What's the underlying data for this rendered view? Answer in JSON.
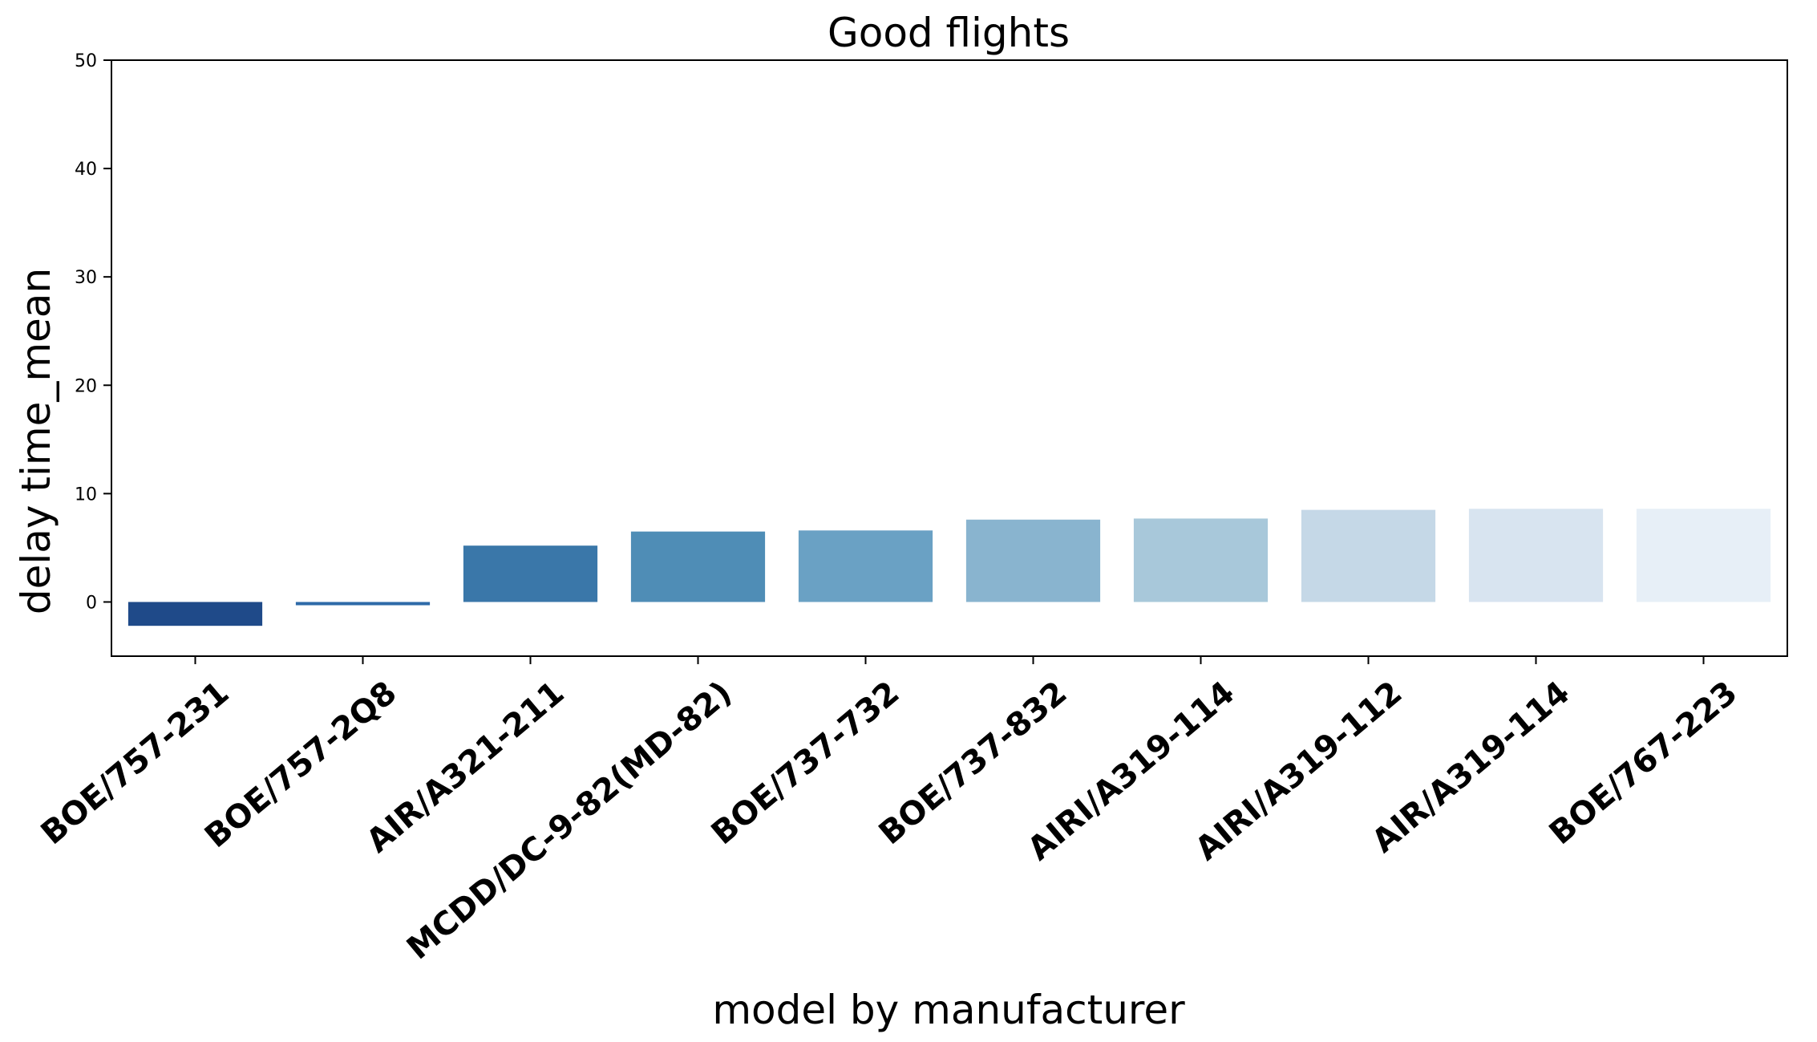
{
  "chart_data": {
    "type": "bar",
    "title": "Good flights",
    "xlabel": "model by manufacturer",
    "ylabel": "delay time_mean",
    "ylim": [
      -5,
      50
    ],
    "yticks": [
      0,
      10,
      20,
      30,
      40,
      50
    ],
    "grid": false,
    "categories": [
      "BOE/757-231",
      "BOE/757-2Q8",
      "AIR/A321-211",
      "MCDD/DC-9-82(MD-82)",
      "BOE/737-732",
      "BOE/737-832",
      "AIRI/A319-114",
      "AIRI/A319-112",
      "AIR/A319-114",
      "BOE/767-223"
    ],
    "values": [
      -2.2,
      -0.3,
      5.2,
      6.5,
      6.6,
      7.6,
      7.7,
      8.5,
      8.6,
      8.6
    ],
    "colors": [
      "#1f4a89",
      "#2e6aa8",
      "#3a77a9",
      "#4f8db6",
      "#6aa1c4",
      "#89b4cf",
      "#a8c8da",
      "#c5d8e7",
      "#d8e4f0",
      "#e7eff7"
    ]
  }
}
